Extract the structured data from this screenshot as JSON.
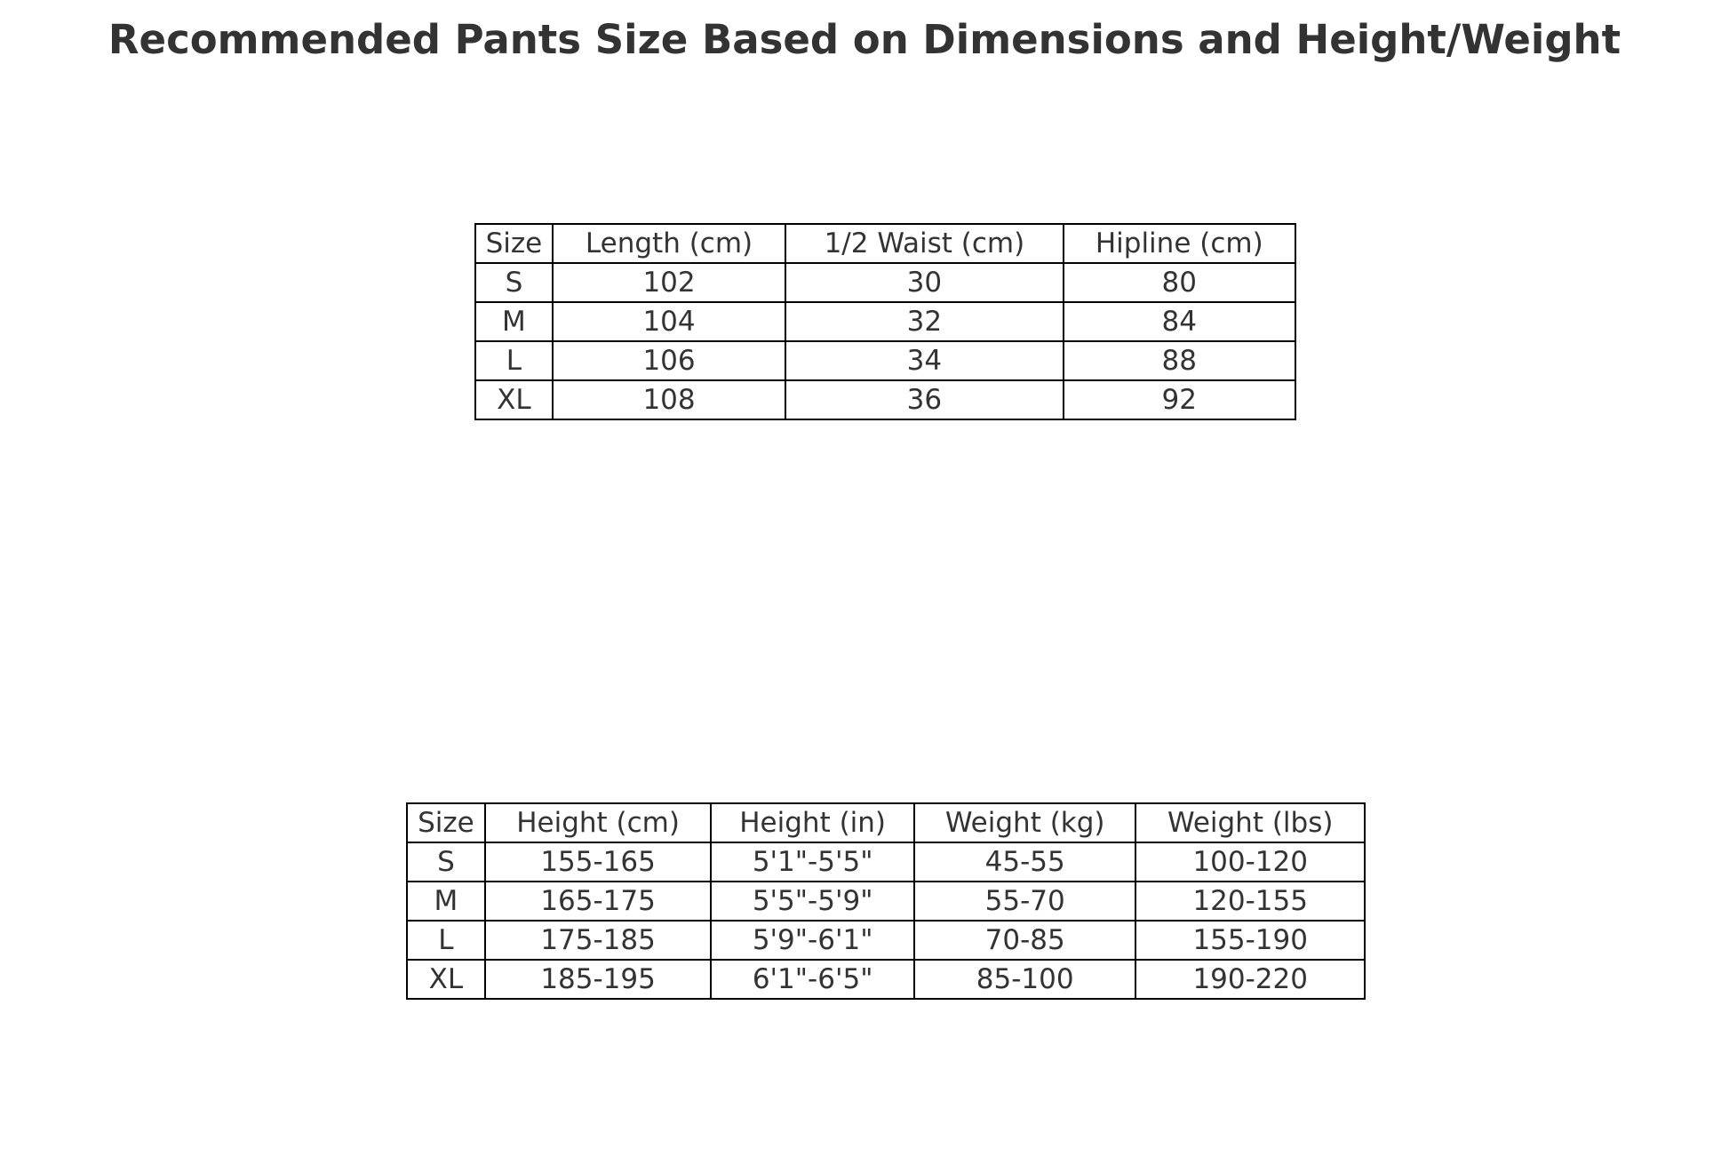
{
  "title": "Recommended Pants Size Based on Dimensions and Height/Weight",
  "dimensions_table": {
    "headers": [
      "Size",
      "Length (cm)",
      "1/2 Waist (cm)",
      "Hipline (cm)"
    ],
    "rows": [
      [
        "S",
        "102",
        "30",
        "80"
      ],
      [
        "M",
        "104",
        "32",
        "84"
      ],
      [
        "L",
        "106",
        "34",
        "88"
      ],
      [
        "XL",
        "108",
        "36",
        "92"
      ]
    ]
  },
  "height_weight_table": {
    "headers": [
      "Size",
      "Height (cm)",
      "Height (in)",
      "Weight (kg)",
      "Weight (lbs)"
    ],
    "rows": [
      [
        "S",
        "155-165",
        "5'1\"-5'5\"",
        "45-55",
        "100-120"
      ],
      [
        "M",
        "165-175",
        "5'5\"-5'9\"",
        "55-70",
        "120-155"
      ],
      [
        "L",
        "175-185",
        "5'9\"-6'1\"",
        "70-85",
        "155-190"
      ],
      [
        "XL",
        "185-195",
        "6'1\"-6'5\"",
        "85-100",
        "190-220"
      ]
    ]
  }
}
